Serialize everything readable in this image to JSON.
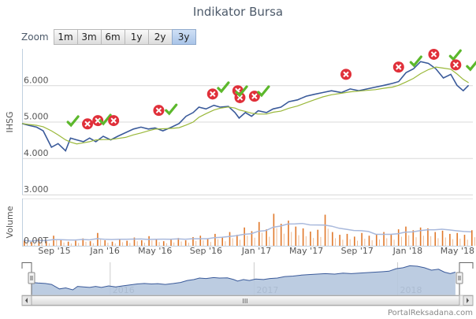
{
  "title": "Indikator Bursa",
  "zoom": {
    "label": "Zoom",
    "buttons": [
      "1m",
      "3m",
      "6m",
      "1y",
      "2y",
      "3y"
    ],
    "selected": "3y"
  },
  "credit": "PortalReksadana.com",
  "scroll_grip": "III",
  "chart_data": {
    "type": "line",
    "title": "Indikator Bursa",
    "ylabel": "IHSG",
    "ylim": [
      3000,
      7000
    ],
    "yticks": [
      "3.000",
      "4.000",
      "5.000",
      "6.000"
    ],
    "ytick_values": [
      3000,
      4000,
      5000,
      6000
    ],
    "xticks": [
      {
        "label": "Sep '15",
        "date": "2015-09-01"
      },
      {
        "label": "Jan '16",
        "date": "2016-01-01"
      },
      {
        "label": "May '16",
        "date": "2016-05-01"
      },
      {
        "label": "Sep '16",
        "date": "2016-09-01"
      },
      {
        "label": "Jan '17",
        "date": "2017-01-01"
      },
      {
        "label": "May '17",
        "date": "2017-05-01"
      },
      {
        "label": "Sep '17",
        "date": "2017-09-01"
      },
      {
        "label": "Jan '18",
        "date": "2018-01-01"
      },
      {
        "label": "May '18",
        "date": "2018-05-01"
      }
    ],
    "x_start": "2015-06-15",
    "colors": {
      "price": "#3a5a9a",
      "sma": "#9ab83a",
      "volume": "#e0782a",
      "volume_ma": "#a9b9dc",
      "navigator": "#b5c6de",
      "sell": "#e0303a",
      "buy": "#5cb82c"
    },
    "series": [
      {
        "name": "IHSG",
        "points": [
          [
            "2015-06-15",
            4950
          ],
          [
            "2015-07-01",
            4900
          ],
          [
            "2015-07-20",
            4850
          ],
          [
            "2015-08-05",
            4750
          ],
          [
            "2015-08-25",
            4300
          ],
          [
            "2015-09-10",
            4400
          ],
          [
            "2015-09-28",
            4200
          ],
          [
            "2015-10-10",
            4550
          ],
          [
            "2015-10-25",
            4500
          ],
          [
            "2015-11-10",
            4450
          ],
          [
            "2015-11-25",
            4550
          ],
          [
            "2015-12-10",
            4450
          ],
          [
            "2015-12-28",
            4600
          ],
          [
            "2016-01-15",
            4500
          ],
          [
            "2016-02-01",
            4600
          ],
          [
            "2016-02-20",
            4700
          ],
          [
            "2016-03-10",
            4800
          ],
          [
            "2016-03-28",
            4850
          ],
          [
            "2016-04-15",
            4800
          ],
          [
            "2016-05-01",
            4830
          ],
          [
            "2016-05-20",
            4750
          ],
          [
            "2016-06-10",
            4850
          ],
          [
            "2016-06-28",
            4950
          ],
          [
            "2016-07-15",
            5150
          ],
          [
            "2016-08-01",
            5250
          ],
          [
            "2016-08-15",
            5400
          ],
          [
            "2016-09-01",
            5350
          ],
          [
            "2016-09-20",
            5450
          ],
          [
            "2016-10-05",
            5400
          ],
          [
            "2016-10-25",
            5420
          ],
          [
            "2016-11-10",
            5250
          ],
          [
            "2016-11-20",
            5100
          ],
          [
            "2016-12-05",
            5250
          ],
          [
            "2016-12-20",
            5150
          ],
          [
            "2017-01-05",
            5300
          ],
          [
            "2017-01-25",
            5250
          ],
          [
            "2017-02-10",
            5350
          ],
          [
            "2017-03-01",
            5400
          ],
          [
            "2017-03-20",
            5550
          ],
          [
            "2017-04-10",
            5600
          ],
          [
            "2017-05-01",
            5700
          ],
          [
            "2017-05-20",
            5750
          ],
          [
            "2017-06-10",
            5800
          ],
          [
            "2017-07-01",
            5850
          ],
          [
            "2017-07-25",
            5800
          ],
          [
            "2017-08-15",
            5900
          ],
          [
            "2017-09-05",
            5850
          ],
          [
            "2017-09-25",
            5900
          ],
          [
            "2017-10-15",
            5950
          ],
          [
            "2017-11-05",
            6000
          ],
          [
            "2017-11-25",
            6050
          ],
          [
            "2017-12-10",
            6100
          ],
          [
            "2017-12-28",
            6350
          ],
          [
            "2018-01-15",
            6450
          ],
          [
            "2018-02-01",
            6650
          ],
          [
            "2018-02-20",
            6600
          ],
          [
            "2018-03-10",
            6450
          ],
          [
            "2018-03-28",
            6200
          ],
          [
            "2018-04-15",
            6300
          ],
          [
            "2018-04-30",
            6000
          ],
          [
            "2018-05-15",
            5850
          ],
          [
            "2018-05-28",
            6000
          ]
        ]
      }
    ],
    "signals": [
      {
        "date": "2015-10-15",
        "value": 4990,
        "type": "buy"
      },
      {
        "date": "2015-11-20",
        "value": 4940,
        "type": "sell"
      },
      {
        "date": "2015-12-15",
        "value": 5030,
        "type": "sell"
      },
      {
        "date": "2016-01-01",
        "value": 5030,
        "type": "buy"
      },
      {
        "date": "2016-01-22",
        "value": 5030,
        "type": "sell"
      },
      {
        "date": "2016-05-10",
        "value": 5310,
        "type": "sell"
      },
      {
        "date": "2016-06-08",
        "value": 5310,
        "type": "buy"
      },
      {
        "date": "2016-09-17",
        "value": 5760,
        "type": "sell"
      },
      {
        "date": "2016-10-12",
        "value": 5920,
        "type": "buy"
      },
      {
        "date": "2016-11-17",
        "value": 5850,
        "type": "sell"
      },
      {
        "date": "2016-11-22",
        "value": 5660,
        "type": "sell"
      },
      {
        "date": "2016-11-25",
        "value": 5810,
        "type": "buy"
      },
      {
        "date": "2016-12-27",
        "value": 5700,
        "type": "sell"
      },
      {
        "date": "2017-01-17",
        "value": 5810,
        "type": "buy"
      },
      {
        "date": "2017-08-05",
        "value": 6300,
        "type": "sell"
      },
      {
        "date": "2017-12-10",
        "value": 6500,
        "type": "sell"
      },
      {
        "date": "2018-01-20",
        "value": 6630,
        "type": "buy"
      },
      {
        "date": "2018-03-05",
        "value": 6850,
        "type": "sell"
      },
      {
        "date": "2018-04-25",
        "value": 6800,
        "type": "buy"
      },
      {
        "date": "2018-04-27",
        "value": 6560,
        "type": "sell"
      },
      {
        "date": "2018-06-05",
        "value": 6520,
        "type": "buy"
      }
    ],
    "volume": {
      "label": "Volume",
      "ytick": "0.00T",
      "ylim": [
        0,
        10
      ],
      "values": [
        1.2,
        0.8,
        1.5,
        1.0,
        2.2,
        1.3,
        0.9,
        1.1,
        1.6,
        1.0,
        2.8,
        1.2,
        0.9,
        1.4,
        1.1,
        1.8,
        1.2,
        2.1,
        1.5,
        1.0,
        1.3,
        1.7,
        1.2,
        1.9,
        2.2,
        1.5,
        2.6,
        1.8,
        3.0,
        2.4,
        4.0,
        3.2,
        5.2,
        3.6,
        7.0,
        4.8,
        5.5,
        4.2,
        3.8,
        3.1,
        3.5,
        6.8,
        3.0,
        2.4,
        2.6,
        2.0,
        2.8,
        2.2,
        2.5,
        3.0,
        2.4,
        3.6,
        4.2,
        3.4,
        4.0,
        3.8,
        3.0,
        3.3,
        2.6,
        2.8,
        2.4,
        3.4
      ]
    },
    "navigator": {
      "ylim": [
        3640,
        7000
      ],
      "years": [
        {
          "label": "2016",
          "date": "2016-01-01"
        },
        {
          "label": "2017",
          "date": "2017-01-01"
        },
        {
          "label": "2018",
          "date": "2018-01-01"
        }
      ]
    }
  }
}
